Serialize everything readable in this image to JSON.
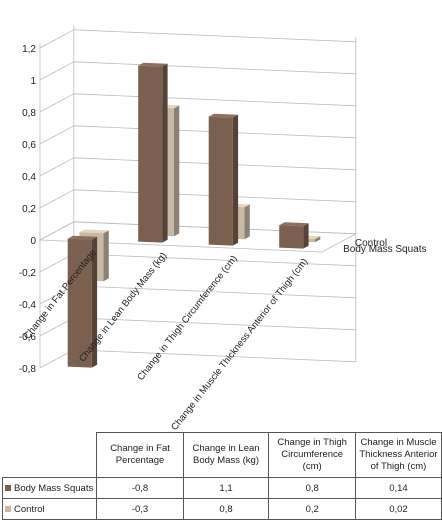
{
  "chart_data": {
    "type": "bar",
    "categories": [
      "Change in Fat Percentage",
      "Change in Lean Body Mass (kg)",
      "Change in Thigh Circumference (cm)",
      "Change in Muscle Thickness Anterior of Thigh (cm)"
    ],
    "series": [
      {
        "name": "Body Mass Squats",
        "values": [
          -0.8,
          1.1,
          0.8,
          0.14
        ],
        "color": "#7b5f4f"
      },
      {
        "name": "Control",
        "values": [
          -0.3,
          0.8,
          0.2,
          0.02
        ],
        "color": "#c8b8a6"
      }
    ],
    "y_ticks": [
      "-0,8",
      "-0,6",
      "-0,4",
      "-0,2",
      "0",
      "0,2",
      "0,4",
      "0,6",
      "0,8",
      "1",
      "1,2"
    ],
    "ylim": [
      -0.8,
      1.2
    ],
    "grid": true,
    "legend": "depth-axis labels at right",
    "table": {
      "headers": [
        "Change in Fat Percentage",
        "Change in Lean Body Mass (kg)",
        "Change in Thigh Circumference (cm)",
        "Change in Muscle Thickness Anterior of Thigh (cm)"
      ],
      "rows": [
        {
          "label": "Body Mass Squats",
          "cells": [
            "-0,8",
            "1,1",
            "0,8",
            "0,14"
          ]
        },
        {
          "label": "Control",
          "cells": [
            "-0,3",
            "0,8",
            "0,2",
            "0,02"
          ]
        }
      ]
    }
  }
}
